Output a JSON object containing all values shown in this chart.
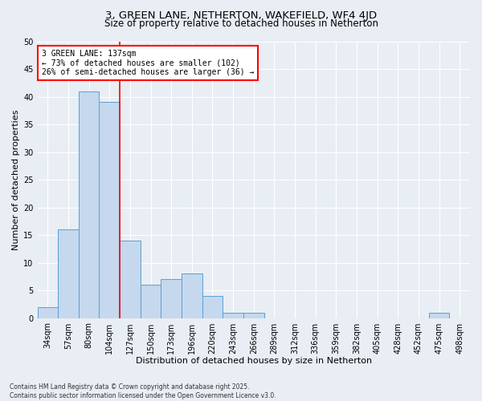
{
  "title_line1": "3, GREEN LANE, NETHERTON, WAKEFIELD, WF4 4JD",
  "title_line2": "Size of property relative to detached houses in Netherton",
  "xlabel": "Distribution of detached houses by size in Netherton",
  "ylabel": "Number of detached properties",
  "categories": [
    "34sqm",
    "57sqm",
    "80sqm",
    "104sqm",
    "127sqm",
    "150sqm",
    "173sqm",
    "196sqm",
    "220sqm",
    "243sqm",
    "266sqm",
    "289sqm",
    "312sqm",
    "336sqm",
    "359sqm",
    "382sqm",
    "405sqm",
    "428sqm",
    "452sqm",
    "475sqm",
    "498sqm"
  ],
  "values": [
    2,
    16,
    41,
    39,
    14,
    6,
    7,
    8,
    4,
    1,
    1,
    0,
    0,
    0,
    0,
    0,
    0,
    0,
    0,
    1,
    0
  ],
  "bar_color": "#c5d8ed",
  "bar_edge_color": "#5a9fd4",
  "red_line_x": 3.5,
  "annotation_text": "3 GREEN LANE: 137sqm\n← 73% of detached houses are smaller (102)\n26% of semi-detached houses are larger (36) →",
  "annotation_box_color": "white",
  "annotation_box_edge_color": "red",
  "ylim": [
    0,
    50
  ],
  "yticks": [
    0,
    5,
    10,
    15,
    20,
    25,
    30,
    35,
    40,
    45,
    50
  ],
  "background_color": "#e8eef4",
  "grid_color": "white",
  "footer_line1": "Contains HM Land Registry data © Crown copyright and database right 2025.",
  "footer_line2": "Contains public sector information licensed under the Open Government Licence v3.0.",
  "title_fontsize": 9.5,
  "subtitle_fontsize": 8.5,
  "axis_label_fontsize": 8,
  "tick_fontsize": 7,
  "annotation_fontsize": 7,
  "footer_fontsize": 5.5
}
